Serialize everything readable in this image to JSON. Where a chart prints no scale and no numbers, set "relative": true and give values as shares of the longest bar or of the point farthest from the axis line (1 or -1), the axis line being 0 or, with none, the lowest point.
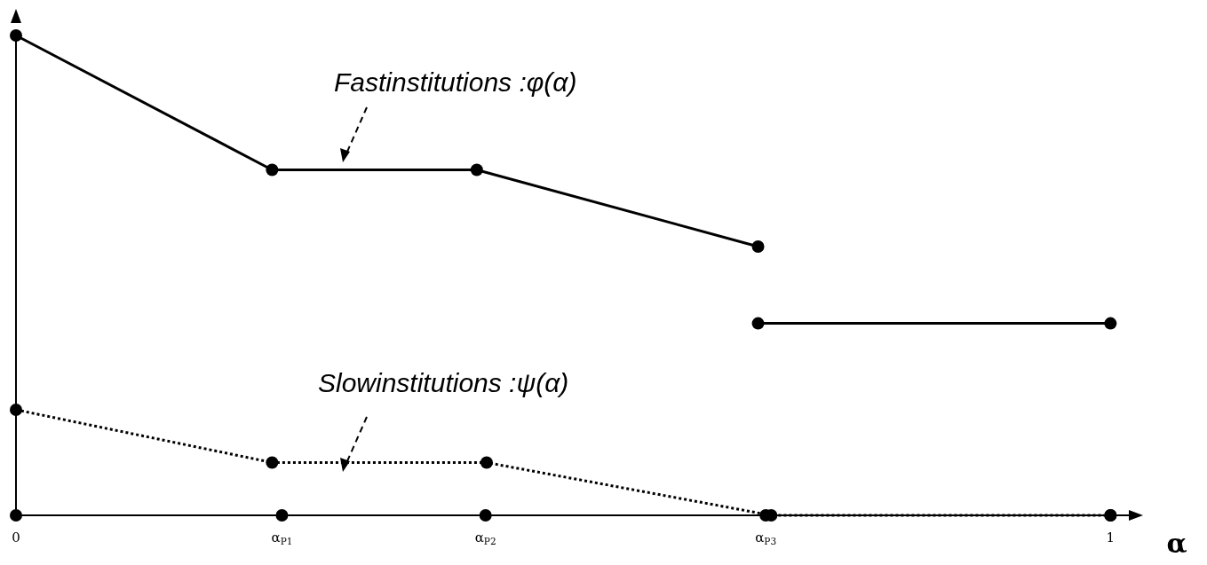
{
  "chart_data": {
    "type": "line",
    "relative": true,
    "xlabel": "α",
    "xlim": [
      0,
      1.02
    ],
    "xticks": [
      0,
      {
        "value": 0.243,
        "label": "α$_{P1}$"
      },
      {
        "value": 0.429,
        "label": "α$_{P2}$"
      },
      {
        "value": 0.685,
        "label": "α$_{P3}$"
      },
      1
    ],
    "marker": "circle",
    "legend": false,
    "grid": false,
    "series": [
      {
        "name": "Fastinstitutions :φ(α)",
        "color": "#000000",
        "line_style": "solid",
        "x": [
          0,
          0.234,
          0.421,
          0.678
        ],
        "values": [
          1,
          0.72,
          0.72,
          0.56
        ]
      },
      {
        "color": "#000000",
        "line_style": "solid",
        "x": [
          0.678,
          1
        ],
        "values": [
          0.4,
          0.4
        ]
      },
      {
        "name": "Slowinstitutions :ψ(α)",
        "color": "#000000",
        "line_style": "dotted",
        "x": [
          0,
          0.234,
          0.43,
          0.69,
          1
        ],
        "values": [
          0.22,
          0.11,
          0.11,
          0,
          0
        ]
      },
      {
        "type": "scatter",
        "color": "#000000",
        "x": [
          0,
          0.243,
          0.429,
          0.685,
          1
        ],
        "values": [
          0,
          0,
          0,
          0,
          0
        ]
      }
    ]
  }
}
